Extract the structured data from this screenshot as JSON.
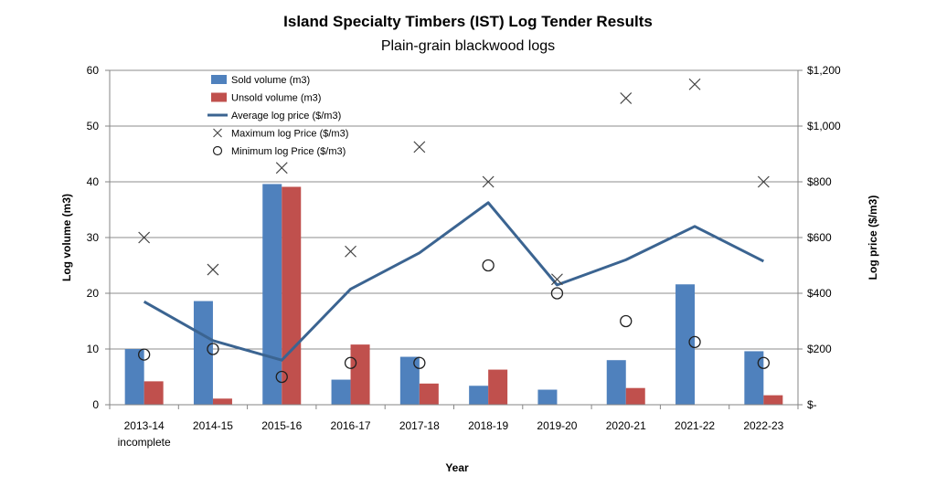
{
  "chart_data": {
    "type": "bar",
    "title": "Island Specialty Timbers (IST) Log Tender Results",
    "subtitle": "Plain-grain blackwood logs",
    "xlabel": "Year",
    "ylabel": "Log volume (m3)",
    "y2label": "Log price ($/m3)",
    "ylim": [
      0,
      60
    ],
    "y2lim": [
      0,
      1200
    ],
    "y_ticks": [
      "0",
      "10",
      "20",
      "30",
      "40",
      "50",
      "60"
    ],
    "y2_ticks": [
      "$-",
      "$200",
      "$400",
      "$600",
      "$800",
      "$1,000",
      "$1,200"
    ],
    "categories": [
      [
        "2013-14",
        "incomplete"
      ],
      [
        "2014-15"
      ],
      [
        "2015-16"
      ],
      [
        "2016-17"
      ],
      [
        "2017-18"
      ],
      [
        "2018-19"
      ],
      [
        "2019-20"
      ],
      [
        "2020-21"
      ],
      [
        "2021-22"
      ],
      [
        "2022-23"
      ]
    ],
    "series": [
      {
        "name": "Sold volume (m3)",
        "kind": "bar",
        "axis": "left",
        "color": "#4F81BD",
        "values": [
          10,
          18.6,
          39.6,
          4.5,
          8.6,
          3.4,
          2.7,
          8.0,
          21.6,
          9.6
        ]
      },
      {
        "name": "Unsold volume (m3)",
        "kind": "bar",
        "axis": "left",
        "color": "#C0504D",
        "values": [
          4.2,
          1.1,
          39.1,
          10.8,
          3.8,
          6.3,
          0,
          3.0,
          0,
          1.7
        ]
      },
      {
        "name": "Average log price ($/m3)",
        "kind": "line",
        "axis": "right",
        "color": "#3B6491",
        "values": [
          370,
          230,
          160,
          415,
          545,
          725,
          430,
          520,
          640,
          515
        ]
      },
      {
        "name": "Maximum log Price ($/m3)",
        "kind": "x-marker",
        "axis": "right",
        "color": "#404040",
        "values": [
          600,
          485,
          850,
          550,
          925,
          800,
          450,
          1100,
          1150,
          800
        ]
      },
      {
        "name": "Minimum log Price ($/m3)",
        "kind": "o-marker",
        "axis": "right",
        "color": "#202020",
        "values": [
          180,
          200,
          100,
          150,
          150,
          500,
          400,
          300,
          225,
          150
        ]
      }
    ]
  }
}
